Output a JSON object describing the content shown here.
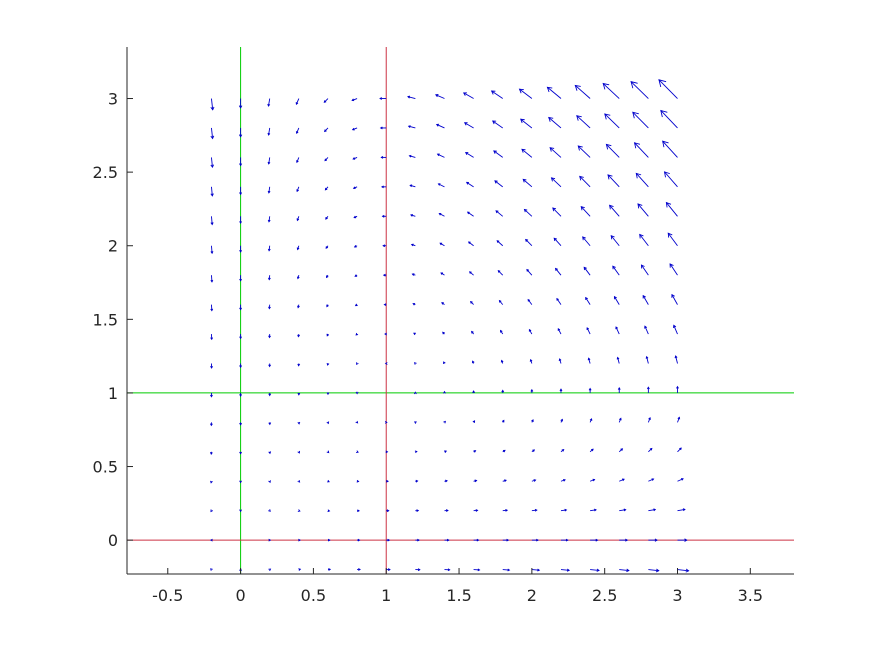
{
  "chart_data": {
    "type": "quiver",
    "title": "",
    "xlabel": "",
    "ylabel": "",
    "xlim": [
      -0.78,
      3.8
    ],
    "ylim": [
      -0.23,
      3.35
    ],
    "xticks": [
      -0.5,
      0,
      0.5,
      1,
      1.5,
      2,
      2.5,
      3,
      3.5
    ],
    "xtick_labels": [
      "-0.5",
      "0",
      "0.5",
      "1",
      "1.5",
      "2",
      "2.5",
      "3",
      "3.5"
    ],
    "yticks": [
      0,
      0.5,
      1,
      1.5,
      2,
      2.5,
      3
    ],
    "ytick_labels": [
      "0",
      "0.5",
      "1",
      "1.5",
      "2",
      "2.5",
      "3"
    ],
    "grid": false,
    "vector_field": {
      "x_range": [
        -0.2,
        3.0
      ],
      "y_range": [
        -0.2,
        3.0
      ],
      "step": 0.2,
      "u": "x*(1-y)",
      "v": "y*(x-1)",
      "color": "#0000cc"
    },
    "nullclines": [
      {
        "orientation": "vertical",
        "value": 0,
        "color": "#00cc00"
      },
      {
        "orientation": "horizontal",
        "value": 1,
        "color": "#00cc00"
      },
      {
        "orientation": "vertical",
        "value": 1,
        "color": "#cc3344"
      },
      {
        "orientation": "horizontal",
        "value": 0,
        "color": "#cc3344"
      }
    ],
    "axis_color": "#262626"
  }
}
